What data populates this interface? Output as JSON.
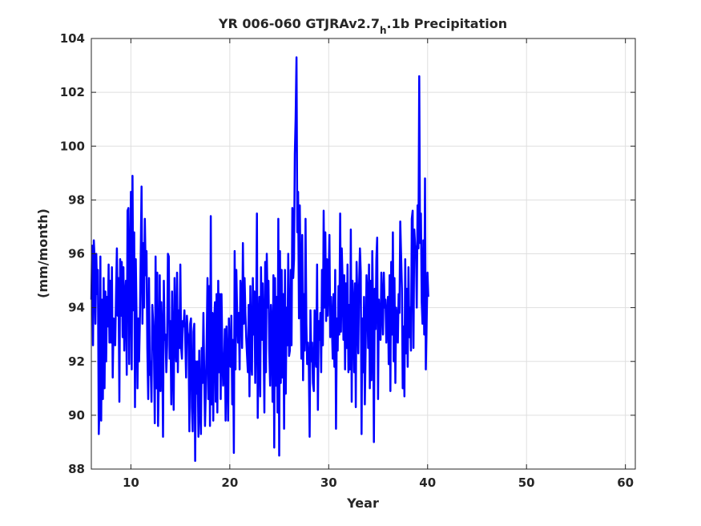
{
  "chart_data": {
    "type": "line",
    "title": {
      "prefix": "YR 006-060 GTJRAv2.7",
      "subscript": "h",
      "suffix": ".1b Precipitation"
    },
    "xlabel": "Year",
    "ylabel": "(mm/month)",
    "xlim": [
      6,
      61
    ],
    "ylim": [
      88,
      104
    ],
    "xticks": [
      10,
      20,
      30,
      40,
      50,
      60
    ],
    "yticks": [
      88,
      90,
      92,
      94,
      96,
      98,
      100,
      102,
      104
    ],
    "grid": true,
    "line_color": "#0000ff",
    "series": [
      {
        "x_start": 6.0,
        "x_step": 0.0833,
        "values": [
          94.3,
          96.3,
          92.6,
          96.5,
          95.8,
          93.4,
          96.0,
          94.5,
          95.4,
          89.3,
          90.5,
          95.9,
          89.8,
          94.3,
          90.6,
          95.1,
          91.0,
          94.6,
          92.0,
          94.4,
          93.3,
          95.6,
          92.7,
          95.0,
          92.7,
          95.5,
          91.4,
          93.6,
          93.0,
          92.6,
          94.6,
          96.2,
          93.7,
          95.1,
          90.5,
          95.8,
          93.7,
          95.7,
          92.9,
          95.5,
          92.4,
          94.5,
          95.0,
          91.5,
          97.6,
          97.7,
          91.9,
          94.9,
          98.3,
          91.7,
          98.9,
          93.9,
          96.8,
          90.3,
          95.8,
          93.4,
          91.0,
          93.6,
          92.0,
          93.7,
          96.1,
          98.5,
          93.4,
          96.4,
          94.0,
          97.3,
          95.2,
          96.1,
          92.5,
          90.6,
          95.1,
          91.5,
          92.0,
          90.5,
          94.1,
          93.5,
          92.4,
          89.7,
          95.9,
          91.0,
          95.3,
          89.6,
          91.5,
          95.2,
          90.9,
          94.2,
          93.0,
          89.2,
          95.0,
          92.8,
          93.0,
          91.6,
          92.6,
          96.0,
          95.9,
          92.1,
          93.5,
          90.4,
          94.6,
          92.2,
          90.2,
          95.1,
          92.9,
          92.0,
          95.3,
          91.6,
          93.9,
          92.5,
          95.6,
          92.5,
          92.1,
          93.5,
          93.3,
          93.9,
          92.9,
          91.4,
          93.7,
          93.1,
          92.9,
          89.4,
          93.4,
          93.6,
          90.3,
          89.4,
          93.1,
          93.4,
          88.3,
          92.0,
          90.8,
          92.0,
          89.2,
          92.4,
          90.4,
          89.3,
          92.5,
          91.2,
          93.8,
          91.6,
          89.6,
          90.9,
          92.7,
          95.1,
          90.6,
          94.8,
          89.6,
          97.4,
          90.4,
          93.8,
          89.8,
          93.4,
          94.2,
          90.5,
          94.5,
          90.1,
          95.0,
          91.6,
          94.5,
          90.6,
          94.5,
          92.4,
          91.1,
          91.5,
          93.2,
          89.8,
          93.3,
          91.7,
          89.8,
          93.6,
          92.0,
          91.8,
          93.7,
          90.4,
          92.8,
          88.6,
          96.1,
          91.7,
          95.4,
          93.8,
          92.7,
          93.8,
          91.7,
          95.0,
          94.5,
          92.5,
          96.4,
          93.4,
          95.1,
          93.8,
          92.9,
          92.2,
          91.6,
          94.1,
          90.7,
          94.8,
          92.1,
          91.5,
          95.1,
          93.0,
          94.6,
          91.2,
          93.5,
          97.5,
          89.9,
          92.7,
          94.4,
          90.7,
          95.5,
          92.8,
          94.9,
          93.2,
          90.1,
          95.7,
          91.6,
          96.0,
          94.0,
          95.0,
          92.4,
          91.1,
          94.1,
          93.3,
          90.5,
          95.2,
          88.8,
          95.1,
          91.1,
          94.4,
          90.1,
          97.3,
          88.5,
          96.1,
          91.2,
          95.4,
          91.4,
          94.5,
          89.5,
          95.4,
          90.8,
          94.0,
          92.6,
          96.0,
          92.2,
          92.4,
          95.4,
          92.6,
          97.7,
          95.1,
          95.8,
          99.7,
          101.0,
          103.3,
          96.8,
          98.3,
          93.6,
          97.8,
          95.0,
          92.1,
          96.7,
          91.3,
          94.5,
          92.4,
          97.3,
          93.4,
          91.9,
          92.7,
          91.8,
          89.2,
          93.9,
          92.0,
          92.7,
          91.2,
          90.9,
          93.9,
          92.4,
          91.8,
          95.6,
          90.2,
          93.5,
          92.8,
          93.8,
          91.6,
          95.4,
          92.6,
          97.6,
          94.0,
          96.8,
          93.5,
          95.8,
          93.7,
          95.2,
          96.7,
          92.9,
          94.4,
          93.3,
          92.1,
          94.5,
          91.8,
          95.4,
          89.5,
          93.6,
          92.4,
          94.8,
          93.0,
          97.5,
          93.1,
          96.2,
          94.9,
          92.8,
          95.2,
          91.7,
          94.9,
          92.5,
          95.6,
          91.6,
          94.1,
          91.7,
          96.9,
          90.5,
          95.0,
          94.1,
          91.6,
          94.9,
          90.3,
          95.7,
          94.2,
          92.3,
          94.8,
          96.2,
          95.3,
          89.3,
          93.6,
          91.6,
          94.4,
          90.4,
          92.5,
          95.2,
          94.4,
          92.5,
          95.6,
          91.0,
          95.0,
          91.3,
          96.1,
          93.9,
          89.0,
          94.7,
          93.2,
          95.8,
          96.6,
          90.6,
          94.3,
          93.3,
          92.8,
          95.3,
          94.2,
          93.0,
          95.3,
          94.0,
          94.3,
          92.7,
          93.7,
          94.4,
          91.9,
          95.2,
          90.9,
          95.7,
          93.0,
          96.8,
          92.0,
          95.1,
          91.2,
          94.0,
          93.6,
          92.7,
          94.5,
          93.8,
          97.2,
          95.9,
          94.7,
          91.0,
          93.3,
          90.7,
          95.8,
          92.3,
          94.7,
          91.8,
          95.5,
          92.9,
          94.0,
          92.4,
          97.3,
          97.6,
          92.5,
          96.9,
          96.3,
          96.2,
          94.0,
          97.8,
          96.2,
          102.6,
          96.4,
          97.5,
          94.2,
          93.4,
          96.5,
          93.0,
          98.8,
          91.7,
          93.4,
          95.3,
          94.4
        ]
      }
    ]
  }
}
